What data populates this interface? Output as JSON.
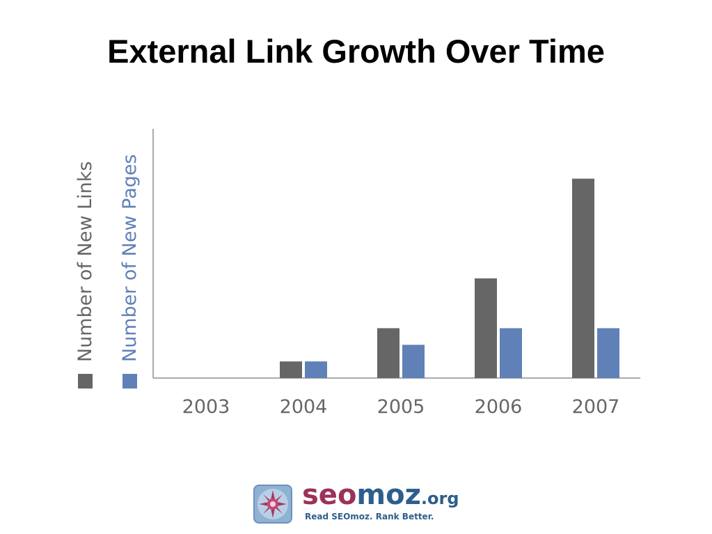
{
  "slide": {
    "title": "External Link Growth Over Time"
  },
  "chart_data": {
    "type": "bar",
    "categories": [
      "2003",
      "2004",
      "2005",
      "2006",
      "2007"
    ],
    "series": [
      {
        "name": "Number of New Links",
        "values": [
          0,
          1,
          3,
          6,
          12
        ],
        "color": "#666666"
      },
      {
        "name": "Number of New Pages",
        "values": [
          0,
          1,
          2,
          3,
          3
        ],
        "color": "#6080b8"
      }
    ],
    "title": "",
    "xlabel": "",
    "ylabel": "",
    "ylim": [
      0,
      15
    ],
    "yaxis_ticks": false,
    "grid": false,
    "legend": "left, rotated vertical"
  },
  "logo": {
    "seo": "seo",
    "moz": "moz",
    "org": ".org",
    "tagline": "Read SEOmoz. Rank Better.",
    "icon": "sun-badge-icon"
  }
}
